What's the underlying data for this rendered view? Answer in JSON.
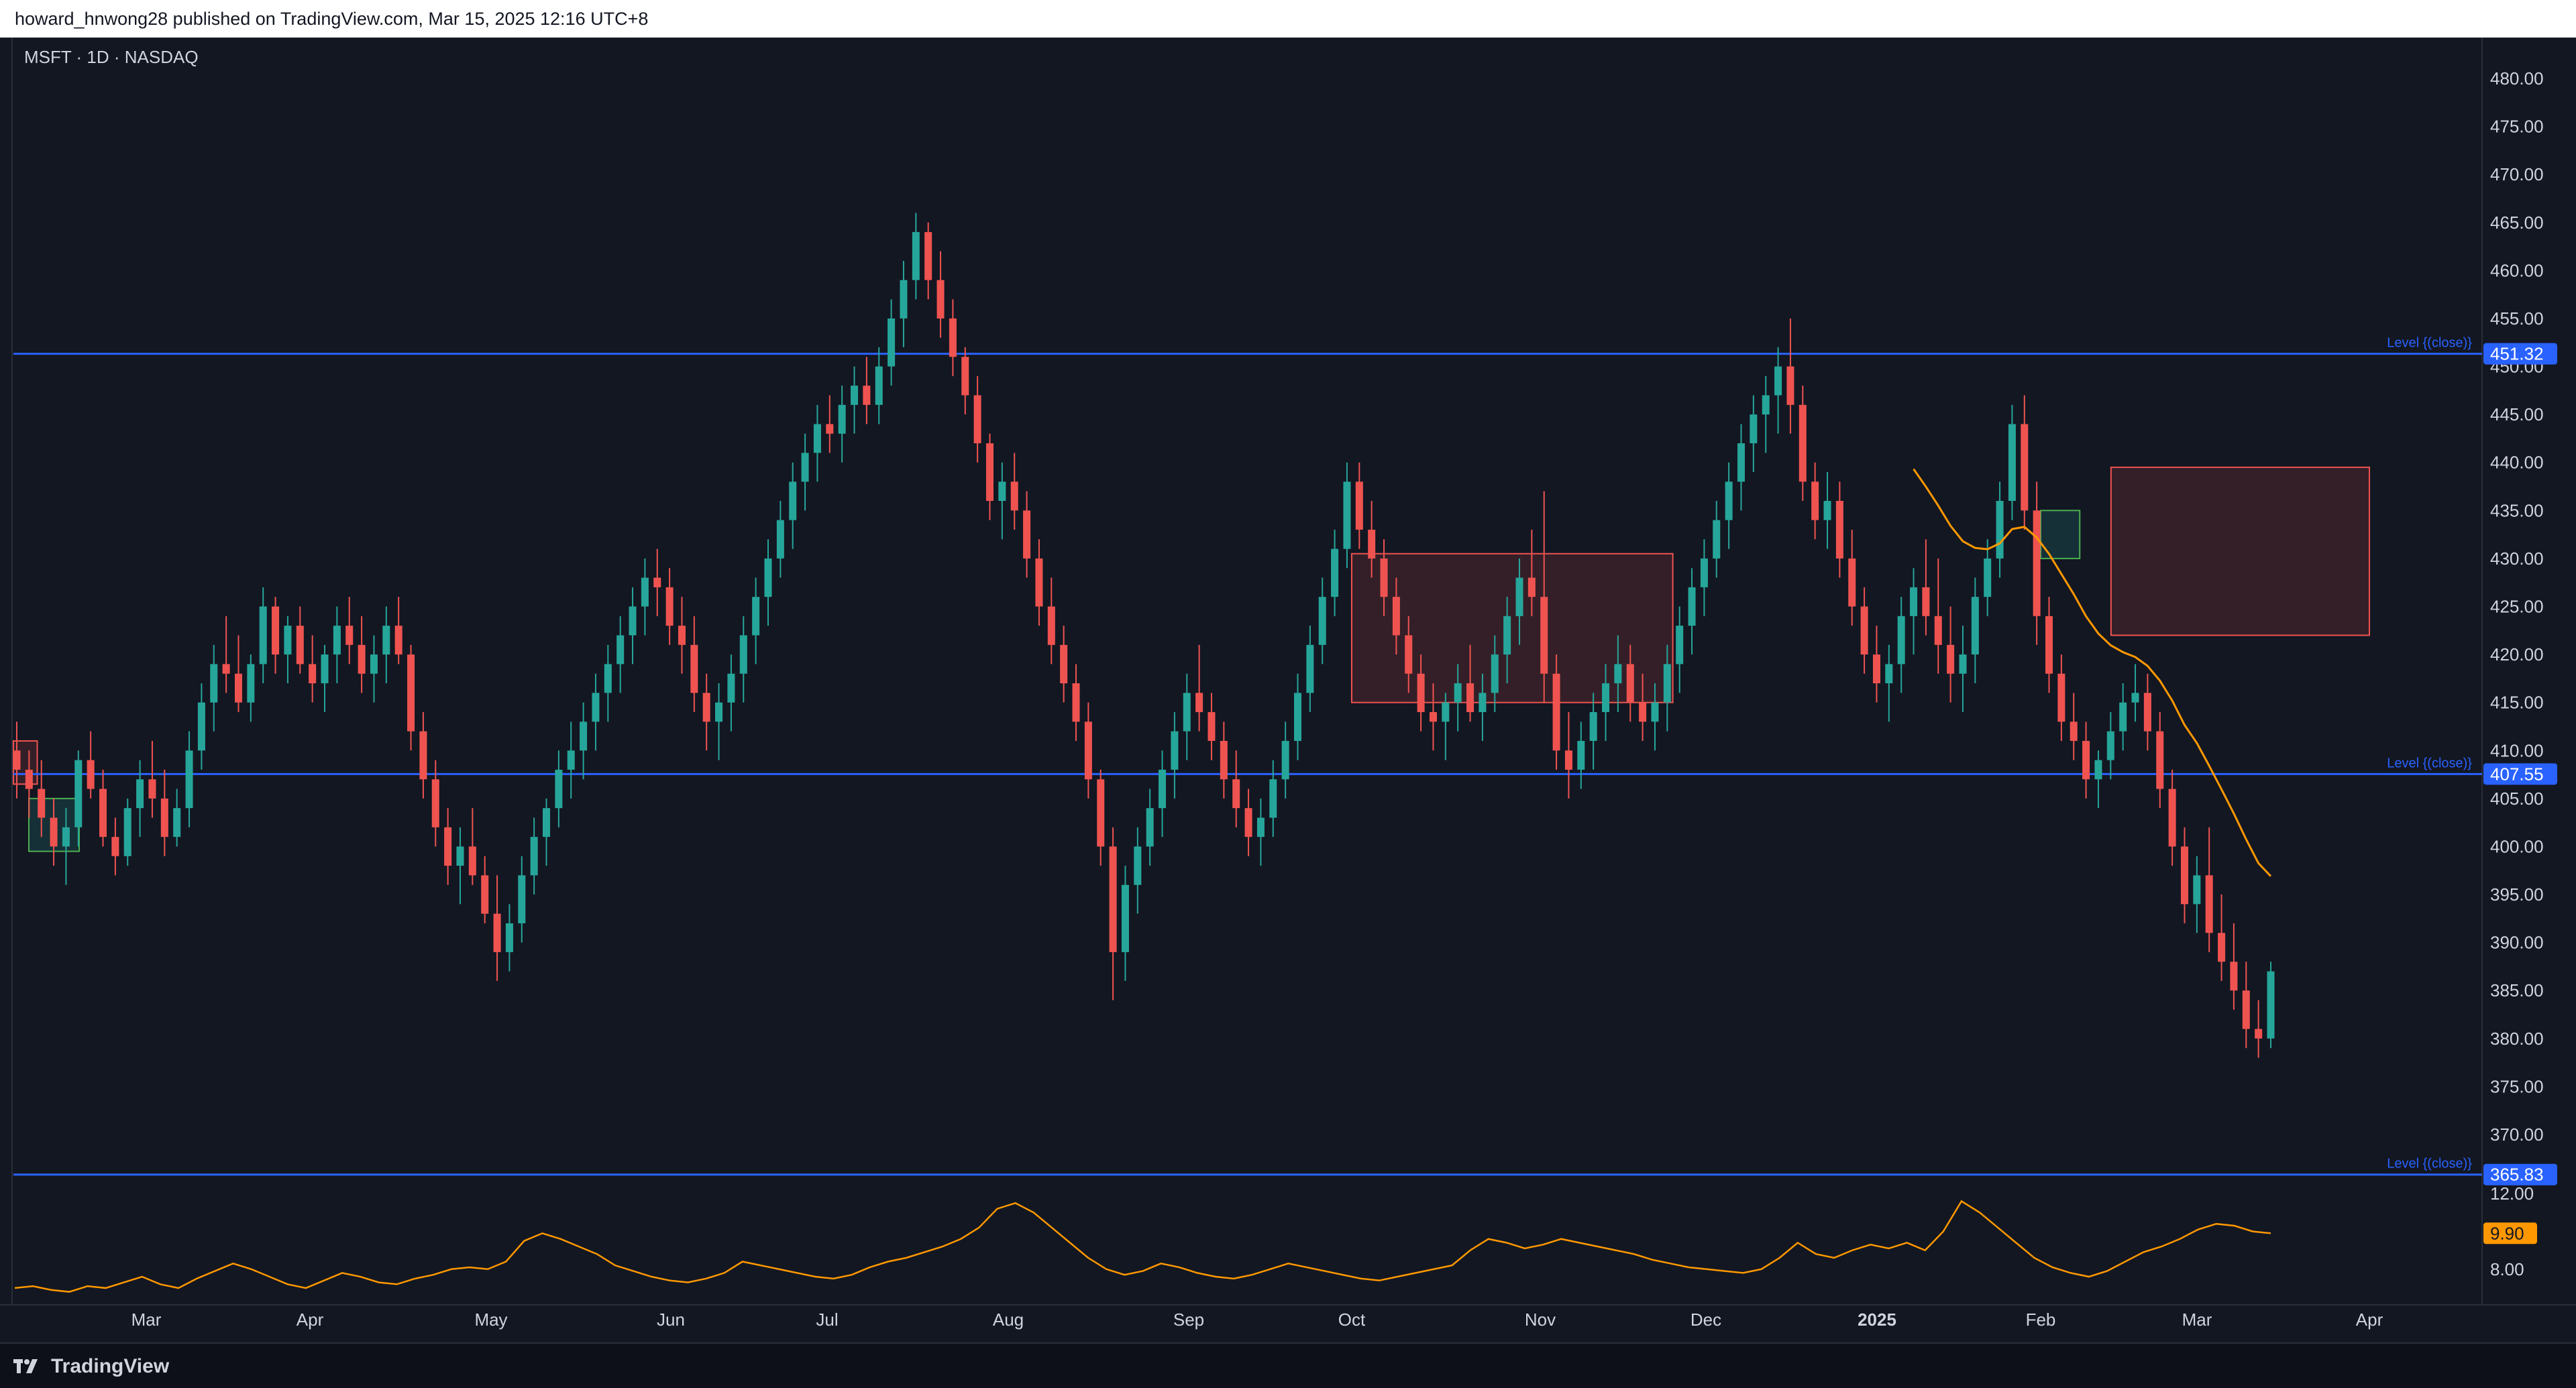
{
  "header": {
    "published_text": "howard_hnwong28 published on TradingView.com, Mar 15, 2025 12:16 UTC+8"
  },
  "symbol_label": "MSFT · 1D · NASDAQ",
  "footer": {
    "brand": "TradingView",
    "logo_icon": "tradingview-logo-icon"
  },
  "colors": {
    "background": "#131722",
    "up": "#26a69a",
    "down": "#ef5350",
    "level": "#2962ff",
    "osc": "#ff9800",
    "grid": "#1e222d",
    "axis_text": "#d1d4dc"
  },
  "chart_data": {
    "type": "candlestick",
    "price_axis": {
      "ticks": [
        "480.00",
        "475.00",
        "470.00",
        "465.00",
        "460.00",
        "455.00",
        "450.00",
        "445.00",
        "440.00",
        "435.00",
        "430.00",
        "425.00",
        "420.00",
        "415.00",
        "410.00",
        "405.00",
        "400.00",
        "395.00",
        "390.00",
        "385.00",
        "380.00",
        "375.00",
        "370.00"
      ],
      "range": [
        366,
        482
      ]
    },
    "time_axis": {
      "labels": [
        "Mar",
        "Apr",
        "May",
        "Jun",
        "Jul",
        "Aug",
        "Sep",
        "Oct",
        "Nov",
        "Dec",
        "2025",
        "Feb",
        "Mar",
        "Apr"
      ]
    },
    "levels": [
      {
        "price": 451.32,
        "label": "Level {(close)}",
        "tag": "451.32"
      },
      {
        "price": 407.55,
        "label": "Level {(close)}",
        "tag": "407.55"
      },
      {
        "price": 365.83,
        "label": "Level {(close)}",
        "tag": "365.83"
      }
    ],
    "zones": [
      {
        "type": "supply",
        "from_month": 12.45,
        "to_month": 16.1,
        "top": 439.5,
        "bottom": 422.0
      },
      {
        "type": "supply",
        "from_month": 8.0,
        "to_month": 9.8,
        "top": 430.5,
        "bottom": 415.0
      },
      {
        "type": "supply",
        "from_month": 0.05,
        "to_month": 0.35,
        "top": 411.0,
        "bottom": 406.5
      },
      {
        "type": "demand",
        "from_month": 0.3,
        "to_month": 0.6,
        "top": 405.0,
        "bottom": 399.5
      },
      {
        "type": "demand",
        "from_month": 12.0,
        "to_month": 12.25,
        "top": 435.0,
        "bottom": 430.0
      }
    ],
    "candles_ohlc": [
      [
        410,
        413,
        405,
        408
      ],
      [
        408,
        410,
        403,
        406
      ],
      [
        406,
        409,
        401,
        403
      ],
      [
        403,
        405,
        398,
        400
      ],
      [
        400,
        404,
        396,
        402
      ],
      [
        402,
        410,
        400,
        409
      ],
      [
        409,
        412,
        405,
        406
      ],
      [
        406,
        408,
        400,
        401
      ],
      [
        401,
        403,
        397,
        399
      ],
      [
        399,
        405,
        398,
        404
      ],
      [
        404,
        409,
        401,
        407
      ],
      [
        407,
        411,
        403,
        405
      ],
      [
        405,
        408,
        399,
        401
      ],
      [
        401,
        406,
        400,
        404
      ],
      [
        404,
        412,
        402,
        410
      ],
      [
        410,
        417,
        408,
        415
      ],
      [
        415,
        421,
        412,
        419
      ],
      [
        419,
        424,
        416,
        418
      ],
      [
        418,
        422,
        414,
        415
      ],
      [
        415,
        420,
        413,
        419
      ],
      [
        419,
        427,
        417,
        425
      ],
      [
        425,
        426,
        418,
        420
      ],
      [
        420,
        424,
        417,
        423
      ],
      [
        423,
        425,
        418,
        419
      ],
      [
        419,
        422,
        415,
        417
      ],
      [
        417,
        421,
        414,
        420
      ],
      [
        420,
        425,
        417,
        423
      ],
      [
        423,
        426,
        419,
        421
      ],
      [
        421,
        424,
        416,
        418
      ],
      [
        418,
        422,
        415,
        420
      ],
      [
        420,
        425,
        417,
        423
      ],
      [
        423,
        426,
        419,
        420
      ],
      [
        420,
        421,
        410,
        412
      ],
      [
        412,
        414,
        405,
        407
      ],
      [
        407,
        409,
        400,
        402
      ],
      [
        402,
        404,
        396,
        398
      ],
      [
        398,
        402,
        394,
        400
      ],
      [
        400,
        404,
        396,
        397
      ],
      [
        397,
        399,
        392,
        393
      ],
      [
        393,
        397,
        386,
        389
      ],
      [
        389,
        394,
        387,
        392
      ],
      [
        392,
        399,
        390,
        397
      ],
      [
        397,
        403,
        395,
        401
      ],
      [
        401,
        405,
        398,
        404
      ],
      [
        404,
        410,
        402,
        408
      ],
      [
        408,
        413,
        405,
        410
      ],
      [
        410,
        415,
        407,
        413
      ],
      [
        413,
        418,
        410,
        416
      ],
      [
        416,
        421,
        413,
        419
      ],
      [
        419,
        424,
        416,
        422
      ],
      [
        422,
        427,
        419,
        425
      ],
      [
        425,
        430,
        422,
        428
      ],
      [
        428,
        431,
        424,
        427
      ],
      [
        427,
        429,
        421,
        423
      ],
      [
        423,
        426,
        418,
        421
      ],
      [
        421,
        424,
        414,
        416
      ],
      [
        416,
        418,
        410,
        413
      ],
      [
        413,
        417,
        409,
        415
      ],
      [
        415,
        420,
        412,
        418
      ],
      [
        418,
        424,
        415,
        422
      ],
      [
        422,
        428,
        419,
        426
      ],
      [
        426,
        432,
        423,
        430
      ],
      [
        430,
        436,
        428,
        434
      ],
      [
        434,
        440,
        431,
        438
      ],
      [
        438,
        443,
        435,
        441
      ],
      [
        441,
        446,
        438,
        444
      ],
      [
        444,
        447,
        441,
        443
      ],
      [
        443,
        448,
        440,
        446
      ],
      [
        446,
        450,
        443,
        448
      ],
      [
        448,
        451,
        444,
        446
      ],
      [
        446,
        452,
        444,
        450
      ],
      [
        450,
        457,
        448,
        455
      ],
      [
        455,
        461,
        452,
        459
      ],
      [
        459,
        466,
        457,
        464
      ],
      [
        464,
        465,
        457,
        459
      ],
      [
        459,
        462,
        453,
        455
      ],
      [
        455,
        457,
        449,
        451
      ],
      [
        451,
        452,
        445,
        447
      ],
      [
        447,
        449,
        440,
        442
      ],
      [
        442,
        443,
        434,
        436
      ],
      [
        436,
        440,
        432,
        438
      ],
      [
        438,
        441,
        433,
        435
      ],
      [
        435,
        437,
        428,
        430
      ],
      [
        430,
        432,
        423,
        425
      ],
      [
        425,
        428,
        419,
        421
      ],
      [
        421,
        423,
        415,
        417
      ],
      [
        417,
        419,
        411,
        413
      ],
      [
        413,
        415,
        405,
        407
      ],
      [
        407,
        408,
        398,
        400
      ],
      [
        400,
        402,
        384,
        389
      ],
      [
        389,
        398,
        386,
        396
      ],
      [
        396,
        402,
        393,
        400
      ],
      [
        400,
        406,
        398,
        404
      ],
      [
        404,
        410,
        401,
        408
      ],
      [
        408,
        414,
        405,
        412
      ],
      [
        412,
        418,
        409,
        416
      ],
      [
        416,
        421,
        412,
        414
      ],
      [
        414,
        416,
        409,
        411
      ],
      [
        411,
        413,
        405,
        407
      ],
      [
        407,
        410,
        402,
        404
      ],
      [
        404,
        406,
        399,
        401
      ],
      [
        401,
        405,
        398,
        403
      ],
      [
        403,
        409,
        401,
        407
      ],
      [
        407,
        413,
        405,
        411
      ],
      [
        411,
        418,
        409,
        416
      ],
      [
        416,
        423,
        414,
        421
      ],
      [
        421,
        428,
        419,
        426
      ],
      [
        426,
        433,
        424,
        431
      ],
      [
        431,
        440,
        429,
        438
      ],
      [
        438,
        440,
        431,
        433
      ],
      [
        433,
        436,
        428,
        430
      ],
      [
        430,
        432,
        424,
        426
      ],
      [
        426,
        428,
        420,
        422
      ],
      [
        422,
        424,
        416,
        418
      ],
      [
        418,
        420,
        412,
        414
      ],
      [
        414,
        417,
        410,
        413
      ],
      [
        413,
        416,
        409,
        415
      ],
      [
        415,
        419,
        412,
        417
      ],
      [
        417,
        421,
        413,
        414
      ],
      [
        414,
        418,
        411,
        416
      ],
      [
        416,
        422,
        414,
        420
      ],
      [
        420,
        426,
        417,
        424
      ],
      [
        424,
        430,
        421,
        428
      ],
      [
        428,
        433,
        424,
        426
      ],
      [
        426,
        437,
        415,
        418
      ],
      [
        418,
        420,
        408,
        410
      ],
      [
        410,
        414,
        405,
        408
      ],
      [
        408,
        413,
        406,
        411
      ],
      [
        411,
        416,
        408,
        414
      ],
      [
        414,
        419,
        411,
        417
      ],
      [
        417,
        422,
        414,
        419
      ],
      [
        419,
        421,
        413,
        415
      ],
      [
        415,
        418,
        411,
        413
      ],
      [
        413,
        417,
        410,
        415
      ],
      [
        415,
        421,
        412,
        419
      ],
      [
        419,
        425,
        416,
        423
      ],
      [
        423,
        429,
        420,
        427
      ],
      [
        427,
        432,
        424,
        430
      ],
      [
        430,
        436,
        428,
        434
      ],
      [
        434,
        440,
        431,
        438
      ],
      [
        438,
        444,
        435,
        442
      ],
      [
        442,
        447,
        439,
        445
      ],
      [
        445,
        449,
        441,
        447
      ],
      [
        447,
        452,
        443,
        450
      ],
      [
        450,
        455,
        443,
        446
      ],
      [
        446,
        448,
        436,
        438
      ],
      [
        438,
        440,
        432,
        434
      ],
      [
        434,
        439,
        431,
        436
      ],
      [
        436,
        438,
        428,
        430
      ],
      [
        430,
        433,
        423,
        425
      ],
      [
        425,
        427,
        418,
        420
      ],
      [
        420,
        423,
        415,
        417
      ],
      [
        417,
        421,
        413,
        419
      ],
      [
        419,
        426,
        416,
        424
      ],
      [
        424,
        429,
        420,
        427
      ],
      [
        427,
        432,
        422,
        424
      ],
      [
        424,
        430,
        418,
        421
      ],
      [
        421,
        425,
        415,
        418
      ],
      [
        418,
        423,
        414,
        420
      ],
      [
        420,
        428,
        417,
        426
      ],
      [
        426,
        432,
        424,
        430
      ],
      [
        430,
        438,
        428,
        436
      ],
      [
        436,
        446,
        434,
        444
      ],
      [
        444,
        447,
        433,
        435
      ],
      [
        435,
        438,
        421,
        424
      ],
      [
        424,
        426,
        416,
        418
      ],
      [
        418,
        420,
        411,
        413
      ],
      [
        413,
        416,
        409,
        411
      ],
      [
        411,
        413,
        405,
        407
      ],
      [
        407,
        410,
        404,
        409
      ],
      [
        409,
        414,
        407,
        412
      ],
      [
        412,
        417,
        410,
        415
      ],
      [
        415,
        419,
        413,
        416
      ],
      [
        416,
        418,
        410,
        412
      ],
      [
        412,
        414,
        404,
        406
      ],
      [
        406,
        408,
        398,
        400
      ],
      [
        400,
        402,
        392,
        394
      ],
      [
        394,
        399,
        391,
        397
      ],
      [
        397,
        402,
        389,
        391
      ],
      [
        391,
        395,
        386,
        388
      ],
      [
        388,
        392,
        383,
        385
      ],
      [
        385,
        388,
        379,
        381
      ],
      [
        381,
        384,
        378,
        380
      ],
      [
        380,
        388,
        379,
        387
      ]
    ],
    "oscillator": {
      "type": "line",
      "axis_ticks": [
        "12.00",
        "8.00"
      ],
      "range": [
        6.5,
        13
      ],
      "current": "9.90",
      "values": [
        7.0,
        7.1,
        6.9,
        6.8,
        7.1,
        7.0,
        7.3,
        7.6,
        7.2,
        7.0,
        7.5,
        7.9,
        8.3,
        8.0,
        7.6,
        7.2,
        7.0,
        7.4,
        7.8,
        7.6,
        7.3,
        7.2,
        7.5,
        7.7,
        8.0,
        8.1,
        8.0,
        8.4,
        9.5,
        9.9,
        9.6,
        9.2,
        8.8,
        8.2,
        7.9,
        7.6,
        7.4,
        7.3,
        7.5,
        7.8,
        8.4,
        8.2,
        8.0,
        7.8,
        7.6,
        7.5,
        7.7,
        8.1,
        8.4,
        8.6,
        8.9,
        9.2,
        9.6,
        10.2,
        11.2,
        11.5,
        11.0,
        10.2,
        9.4,
        8.6,
        8.0,
        7.7,
        7.9,
        8.3,
        8.1,
        7.8,
        7.6,
        7.5,
        7.7,
        8.0,
        8.3,
        8.1,
        7.9,
        7.7,
        7.5,
        7.4,
        7.6,
        7.8,
        8.0,
        8.2,
        9.0,
        9.6,
        9.4,
        9.1,
        9.3,
        9.6,
        9.4,
        9.2,
        9.0,
        8.8,
        8.5,
        8.3,
        8.1,
        8.0,
        7.9,
        7.8,
        8.0,
        8.6,
        9.4,
        8.8,
        8.6,
        9.0,
        9.3,
        9.1,
        9.4,
        9.0,
        10.0,
        11.6,
        11.0,
        10.2,
        9.4,
        8.6,
        8.1,
        7.8,
        7.6,
        7.9,
        8.4,
        8.9,
        9.2,
        9.6,
        10.1,
        10.4,
        10.3,
        10.0,
        9.9
      ]
    }
  }
}
